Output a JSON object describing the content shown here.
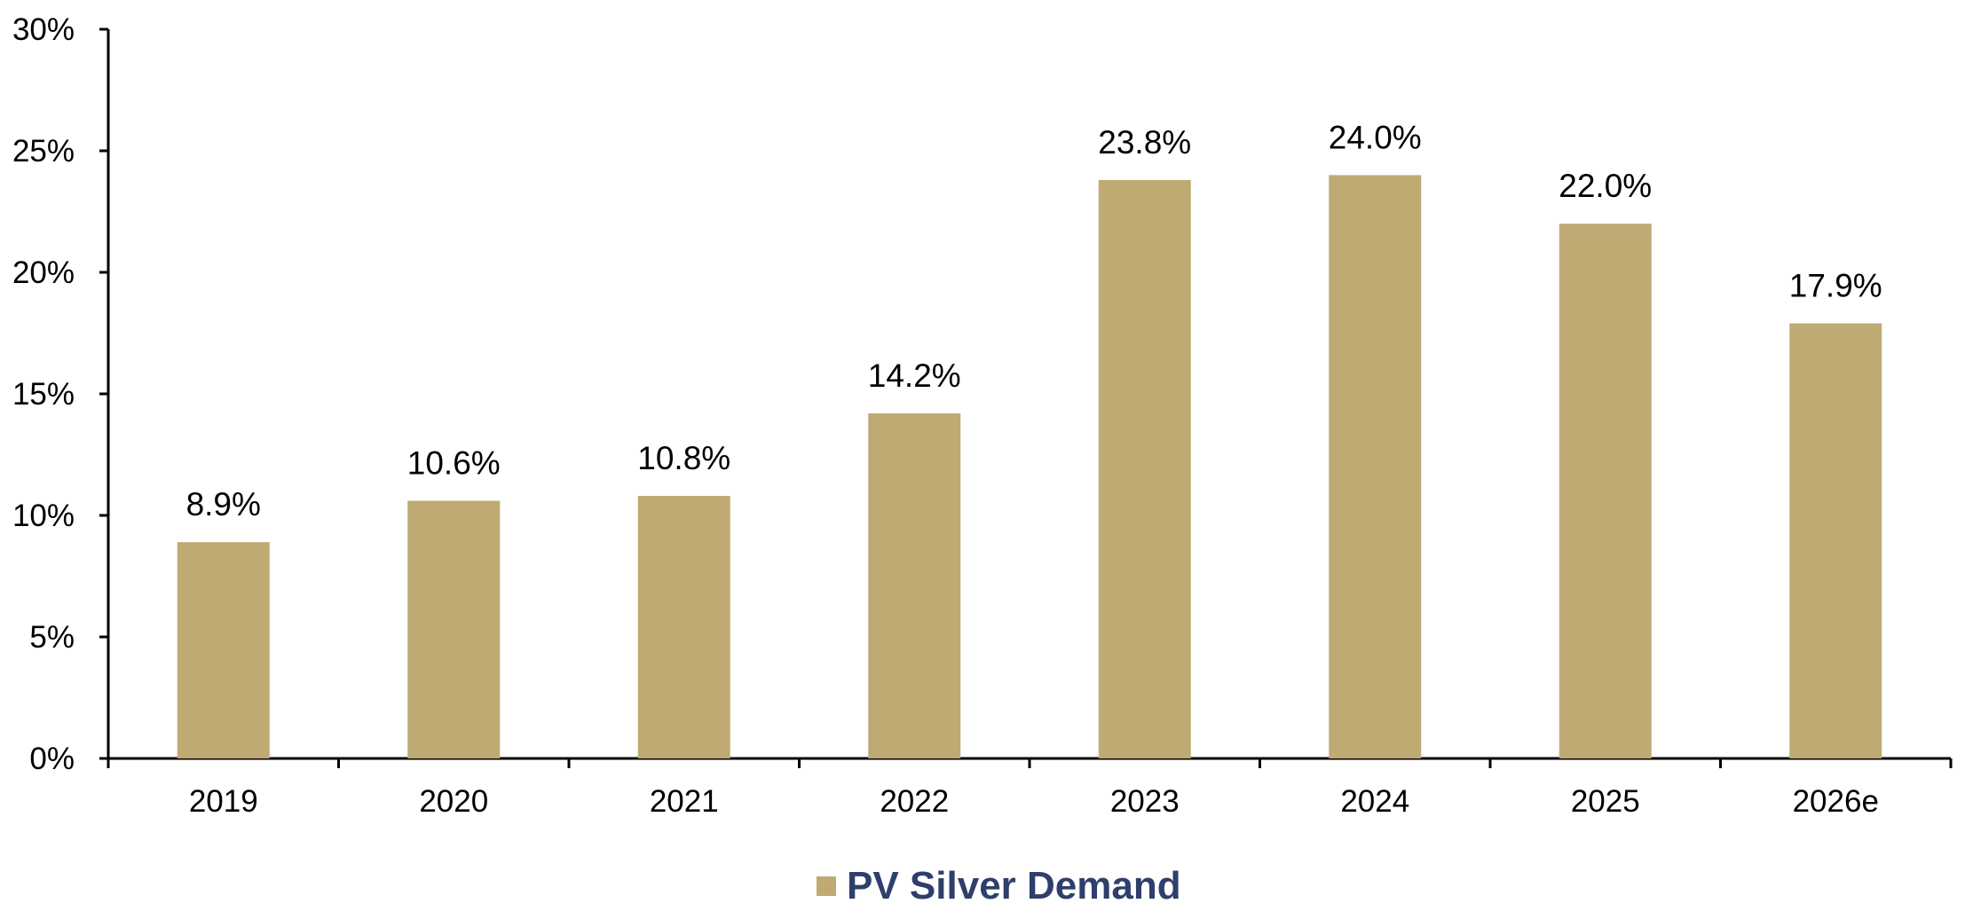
{
  "chart_data": {
    "type": "bar",
    "title": "",
    "xlabel": "",
    "ylabel": "",
    "categories": [
      "2019",
      "2020",
      "2021",
      "2022",
      "2023",
      "2024",
      "2025",
      "2026e"
    ],
    "series": [
      {
        "name": "PV Silver Demand",
        "values": [
          8.9,
          10.6,
          10.8,
          14.2,
          23.8,
          24.0,
          22.0,
          17.9
        ],
        "data_labels": [
          "8.9%",
          "10.6%",
          "10.8%",
          "14.2%",
          "23.8%",
          "24.0%",
          "22.0%",
          "17.9%"
        ]
      }
    ],
    "ylim": [
      0,
      30
    ],
    "y_ticks": [
      0,
      5,
      10,
      15,
      20,
      25,
      30
    ],
    "y_tick_labels": [
      "0%",
      "5%",
      "10%",
      "15%",
      "20%",
      "25%",
      "30%"
    ],
    "grid": false,
    "legend_position": "bottom-center",
    "colors": {
      "bar": "#bfaa74",
      "axis": "#000000",
      "legend_text": "#2e3f6b"
    }
  }
}
